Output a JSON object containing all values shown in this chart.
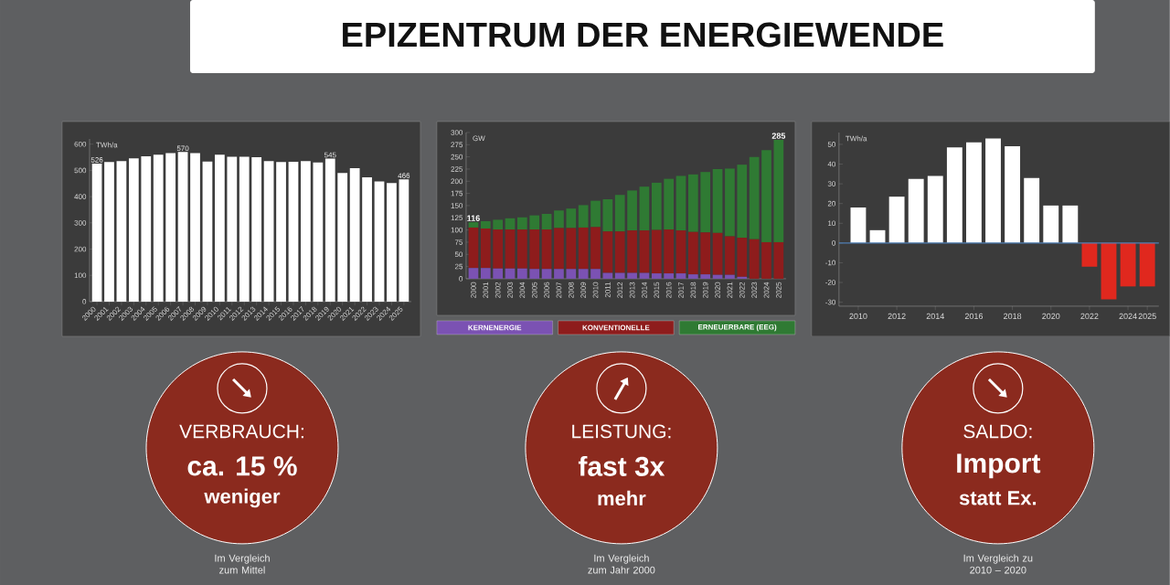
{
  "chart_data": [
    {
      "type": "bar",
      "ylabel": "TWh/a",
      "categories": [
        "2000",
        "2001",
        "2002",
        "2003",
        "2004",
        "2005",
        "2006",
        "2007",
        "2008",
        "2009",
        "2010",
        "2011",
        "2012",
        "2013",
        "2014",
        "2015",
        "2016",
        "2017",
        "2018",
        "2019",
        "2020",
        "2021",
        "2022",
        "2023",
        "2024",
        "2025"
      ],
      "values": [
        526,
        532,
        535,
        546,
        554,
        560,
        566,
        570,
        566,
        534,
        560,
        552,
        552,
        550,
        535,
        532,
        533,
        535,
        530,
        545,
        490,
        508,
        474,
        458,
        452,
        466
      ],
      "color": "#ffffff",
      "ylim": [
        0,
        620
      ],
      "yticks": [
        0,
        100,
        200,
        300,
        400,
        500,
        600
      ],
      "value_labels": [
        "526",
        null,
        null,
        null,
        null,
        null,
        null,
        "570",
        null,
        null,
        null,
        null,
        null,
        null,
        null,
        null,
        null,
        null,
        null,
        "545",
        null,
        null,
        null,
        null,
        null,
        "466"
      ]
    },
    {
      "type": "bar",
      "stacked": true,
      "ylabel": "GW",
      "categories": [
        "2000",
        "2001",
        "2002",
        "2003",
        "2004",
        "2005",
        "2006",
        "2007",
        "2008",
        "2009",
        "2010",
        "2011",
        "2012",
        "2013",
        "2014",
        "2015",
        "2016",
        "2017",
        "2018",
        "2019",
        "2020",
        "2021",
        "2022",
        "2023",
        "2024",
        "2025"
      ],
      "series": [
        {
          "name": "KERNENERGIE",
          "color": "#7b52b3",
          "values": [
            22,
            22,
            21,
            21,
            21,
            20,
            20,
            20,
            20,
            20,
            20,
            12,
            12,
            12,
            12,
            11,
            11,
            11,
            9,
            9,
            8,
            8,
            4,
            0,
            0,
            0
          ]
        },
        {
          "name": "KONVENTIONELLE",
          "color": "#8e1c1c",
          "values": [
            83,
            81,
            80,
            80,
            80,
            81,
            81,
            84,
            84,
            85,
            86,
            85,
            85,
            87,
            87,
            89,
            90,
            88,
            87,
            86,
            86,
            79,
            80,
            81,
            75,
            75
          ]
        },
        {
          "name": "ERNEUERBARE (EEG)",
          "color": "#2f7a33",
          "values": [
            11,
            15,
            20,
            23,
            25,
            29,
            32,
            36,
            40,
            46,
            54,
            66,
            75,
            82,
            90,
            97,
            104,
            112,
            118,
            124,
            131,
            139,
            150,
            169,
            189,
            210
          ]
        }
      ],
      "ylim": [
        0,
        300
      ],
      "yticks": [
        0,
        25,
        50,
        75,
        100,
        125,
        150,
        175,
        200,
        225,
        250,
        275,
        300
      ],
      "legend": "bottom",
      "totals": [
        "116",
        null,
        null,
        null,
        null,
        null,
        null,
        null,
        null,
        null,
        null,
        null,
        null,
        null,
        null,
        null,
        null,
        null,
        null,
        null,
        null,
        null,
        null,
        null,
        null,
        "285"
      ]
    },
    {
      "type": "bar",
      "ylabel": "TWh/a",
      "x": [
        2010,
        2011,
        2012,
        2013,
        2014,
        2015,
        2016,
        2017,
        2018,
        2019,
        2020,
        2021,
        2022,
        2023,
        2024,
        2025
      ],
      "values": [
        18,
        6.5,
        23.5,
        32.5,
        34,
        48.5,
        51,
        53,
        49,
        33,
        19,
        19,
        -12,
        -28.5,
        -22,
        -22
      ],
      "colors": [
        "#ffffff",
        "#ffffff",
        "#ffffff",
        "#ffffff",
        "#ffffff",
        "#ffffff",
        "#ffffff",
        "#ffffff",
        "#ffffff",
        "#ffffff",
        "#ffffff",
        "#ffffff",
        "#e0281e",
        "#e0281e",
        "#e0281e",
        "#e0281e"
      ],
      "xlim": [
        2009,
        2025.6
      ],
      "ylim": [
        -32,
        56
      ],
      "xticks": [
        2010,
        2012,
        2014,
        2016,
        2018,
        2020,
        2022,
        2024,
        2025
      ],
      "yticks": [
        -30,
        -20,
        -10,
        0,
        10,
        20,
        30,
        40,
        50
      ],
      "ref_lines": [
        {
          "axis": "y",
          "value": 0,
          "color": "#4f7fb5"
        }
      ]
    },
    {
      "type": "other",
      "title": "EPIZENTRUM DER ENERGIEWENDE",
      "annotations": [
        "VERBRAUCH:",
        "ca. 15 %",
        "weniger",
        "Im Vergleich zum Mittel",
        "LEISTUNG:",
        "fast 3x",
        "mehr",
        "Im Vergleich zum Jahr 2000",
        "SALDO:",
        "Import",
        "statt Ex.",
        "Im Vergleich zu 2010 – 2020"
      ]
    }
  ]
}
